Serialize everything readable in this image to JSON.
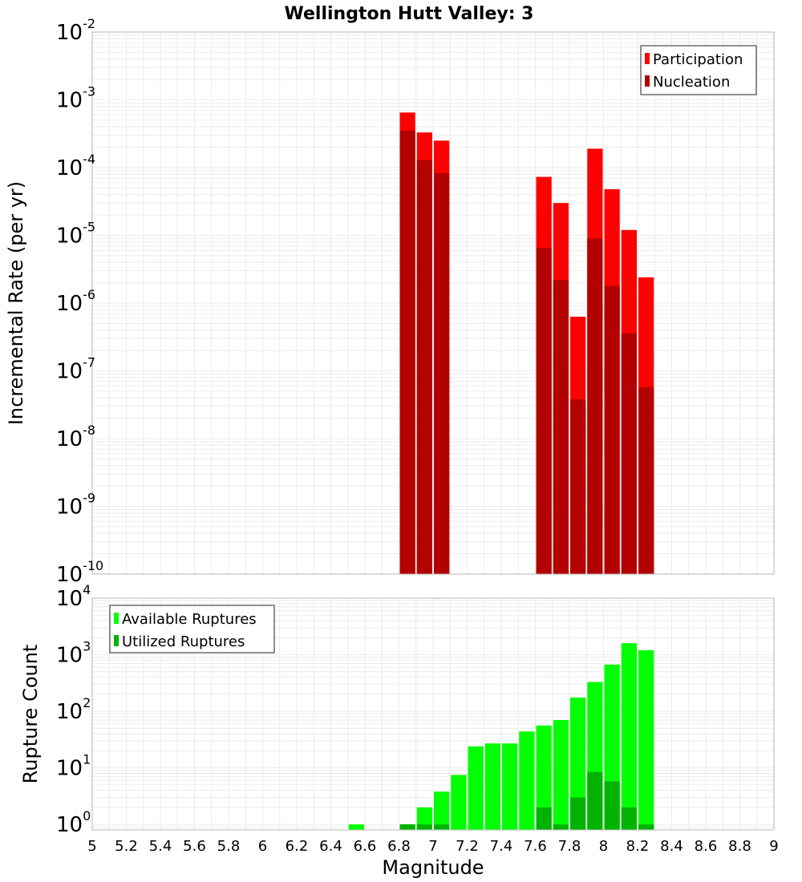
{
  "chart_data": [
    {
      "type": "bar",
      "title": "Wellington Hutt Valley: 3",
      "xlabel": "",
      "ylabel": "Incremental Rate (per yr)",
      "xlim": [
        5,
        9
      ],
      "ylim": [
        1e-10,
        0.01
      ],
      "yscale": "log",
      "grid": true,
      "legend_placement": "top-right",
      "bar_width": 0.1,
      "series": [
        {
          "name": "Participation",
          "color": "#ff0000",
          "points": [
            {
              "x": 6.85,
              "y": 0.00065
            },
            {
              "x": 6.95,
              "y": 0.00033
            },
            {
              "x": 7.05,
              "y": 0.00025
            },
            {
              "x": 7.65,
              "y": 7.3e-05
            },
            {
              "x": 7.75,
              "y": 3e-05
            },
            {
              "x": 7.85,
              "y": 6.3e-07
            },
            {
              "x": 7.95,
              "y": 0.00019
            },
            {
              "x": 8.05,
              "y": 4.8e-05
            },
            {
              "x": 8.15,
              "y": 1.2e-05
            },
            {
              "x": 8.25,
              "y": 2.4e-06
            }
          ]
        },
        {
          "name": "Nucleation",
          "color": "#b30000",
          "points": [
            {
              "x": 6.85,
              "y": 0.00035
            },
            {
              "x": 6.95,
              "y": 0.00013
            },
            {
              "x": 7.05,
              "y": 8.3e-05
            },
            {
              "x": 7.65,
              "y": 6.5e-06
            },
            {
              "x": 7.75,
              "y": 2.2e-06
            },
            {
              "x": 7.85,
              "y": 3.8e-08
            },
            {
              "x": 7.95,
              "y": 9e-06
            },
            {
              "x": 8.05,
              "y": 1.8e-06
            },
            {
              "x": 8.15,
              "y": 3.6e-07
            },
            {
              "x": 8.25,
              "y": 5.7e-08
            }
          ]
        }
      ]
    },
    {
      "type": "bar",
      "title": "",
      "xlabel": "Magnitude",
      "ylabel": "Rupture Count",
      "xlim": [
        5,
        9
      ],
      "ylim": [
        0.8,
        10000
      ],
      "yscale": "log",
      "grid": true,
      "legend_placement": "top-left",
      "bar_width": 0.1,
      "x_ticks": [
        "5",
        "5.2",
        "5.4",
        "5.6",
        "5.8",
        "6",
        "6.2",
        "6.4",
        "6.6",
        "6.8",
        "7",
        "7.2",
        "7.4",
        "7.6",
        "7.8",
        "8",
        "8.2",
        "8.4",
        "8.6",
        "8.8",
        "9"
      ],
      "series": [
        {
          "name": "Available Ruptures",
          "color": "#00ff00",
          "points": [
            {
              "x": 6.55,
              "y": 1
            },
            {
              "x": 6.85,
              "y": 1
            },
            {
              "x": 6.95,
              "y": 2
            },
            {
              "x": 7.05,
              "y": 3.8
            },
            {
              "x": 7.15,
              "y": 7.5
            },
            {
              "x": 7.25,
              "y": 24
            },
            {
              "x": 7.35,
              "y": 27
            },
            {
              "x": 7.45,
              "y": 27
            },
            {
              "x": 7.55,
              "y": 44
            },
            {
              "x": 7.65,
              "y": 56
            },
            {
              "x": 7.75,
              "y": 70
            },
            {
              "x": 7.85,
              "y": 175
            },
            {
              "x": 7.95,
              "y": 330
            },
            {
              "x": 8.05,
              "y": 670
            },
            {
              "x": 8.15,
              "y": 1600
            },
            {
              "x": 8.25,
              "y": 1200
            }
          ]
        },
        {
          "name": "Utilized Ruptures",
          "color": "#00b300",
          "points": [
            {
              "x": 6.85,
              "y": 1
            },
            {
              "x": 6.95,
              "y": 1
            },
            {
              "x": 7.05,
              "y": 1
            },
            {
              "x": 7.65,
              "y": 2
            },
            {
              "x": 7.75,
              "y": 1
            },
            {
              "x": 7.85,
              "y": 3
            },
            {
              "x": 7.95,
              "y": 8.5
            },
            {
              "x": 8.05,
              "y": 5.8
            },
            {
              "x": 8.15,
              "y": 2
            },
            {
              "x": 8.25,
              "y": 1
            }
          ]
        }
      ]
    }
  ],
  "colors": {
    "grid": "#ebebeb",
    "frame": "#b4b4b4",
    "background": "#ffffff"
  }
}
